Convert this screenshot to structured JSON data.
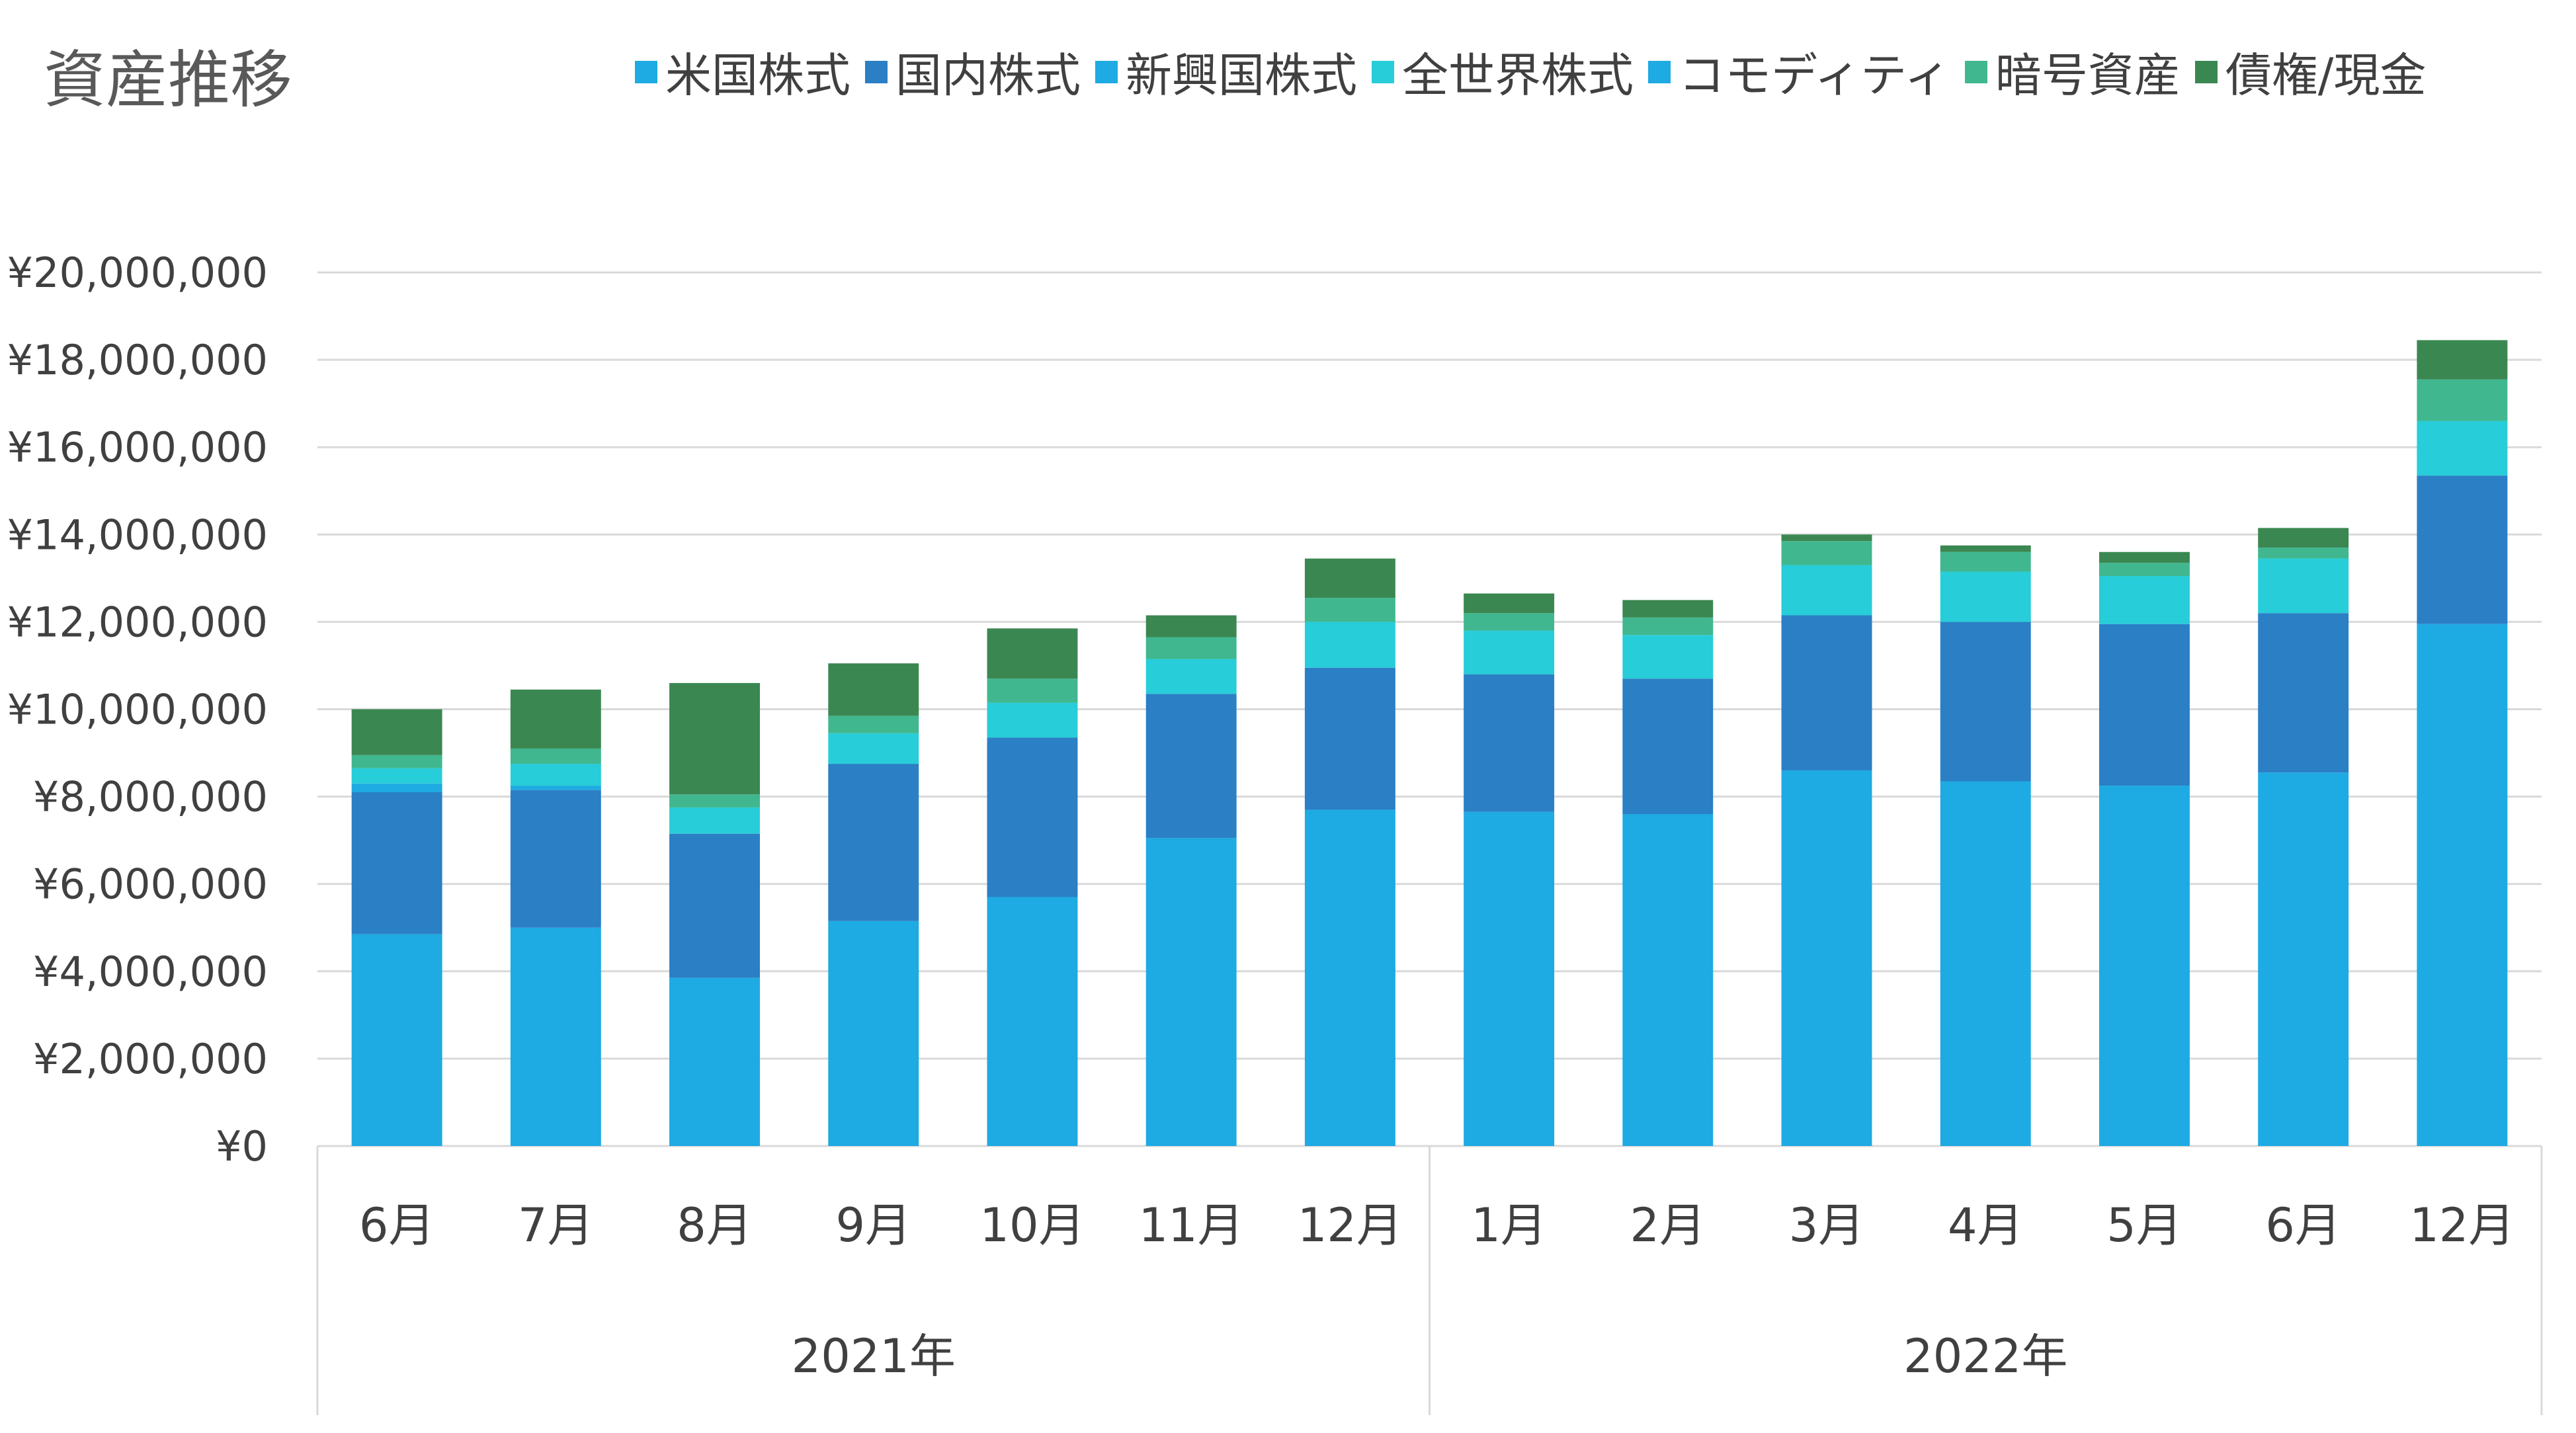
{
  "chart_data": {
    "type": "bar",
    "stacked": true,
    "title": "資産推移",
    "xlabel": "",
    "ylabel": "",
    "ylim": [
      0,
      20000000
    ],
    "yticks": [
      0,
      2000000,
      4000000,
      6000000,
      8000000,
      10000000,
      12000000,
      14000000,
      16000000,
      18000000,
      20000000
    ],
    "ytick_labels": [
      "¥0",
      "¥2,000,000",
      "¥4,000,000",
      "¥6,000,000",
      "¥8,000,000",
      "¥10,000,000",
      "¥12,000,000",
      "¥14,000,000",
      "¥16,000,000",
      "¥18,000,000",
      "¥20,000,000"
    ],
    "grid": true,
    "legend_position": "top-right",
    "categories": [
      "6月",
      "7月",
      "8月",
      "9月",
      "10月",
      "11月",
      "12月",
      "1月",
      "2月",
      "3月",
      "4月",
      "5月",
      "6月",
      "12月"
    ],
    "groups": [
      {
        "label": "2021年",
        "count": 7
      },
      {
        "label": "2022年",
        "count": 7
      }
    ],
    "series": [
      {
        "name": "米国株式",
        "color": "#1eaae2",
        "values": [
          4850000,
          5000000,
          3850000,
          5150000,
          5700000,
          7050000,
          7700000,
          7650000,
          7600000,
          8600000,
          8350000,
          8250000,
          8550000,
          11950000
        ]
      },
      {
        "name": "国内株式",
        "color": "#2a7fc5",
        "values": [
          3250000,
          3150000,
          3300000,
          3600000,
          3650000,
          3300000,
          3250000,
          3150000,
          3100000,
          3550000,
          3650000,
          3700000,
          3650000,
          3400000
        ]
      },
      {
        "name": "新興国株式",
        "color": "#1eaae2",
        "values": [
          200000,
          100000,
          0,
          0,
          0,
          0,
          0,
          0,
          0,
          0,
          0,
          0,
          0,
          0
        ]
      },
      {
        "name": "全世界株式",
        "color": "#27cdd8",
        "values": [
          350000,
          500000,
          600000,
          700000,
          800000,
          800000,
          1050000,
          1000000,
          1000000,
          1150000,
          1150000,
          1100000,
          1250000,
          1250000
        ]
      },
      {
        "name": "コモディティ",
        "color": "#1eaae2",
        "values": [
          0,
          0,
          0,
          0,
          0,
          0,
          0,
          0,
          0,
          0,
          0,
          0,
          0,
          0
        ]
      },
      {
        "name": "暗号資産",
        "color": "#40b78f",
        "values": [
          300000,
          350000,
          300000,
          400000,
          550000,
          500000,
          550000,
          400000,
          400000,
          550000,
          450000,
          300000,
          250000,
          950000
        ]
      },
      {
        "name": "債権/現金",
        "color": "#3b8752",
        "values": [
          1050000,
          1350000,
          2550000,
          1200000,
          1150000,
          500000,
          900000,
          450000,
          400000,
          150000,
          150000,
          250000,
          450000,
          900000
        ]
      }
    ]
  }
}
